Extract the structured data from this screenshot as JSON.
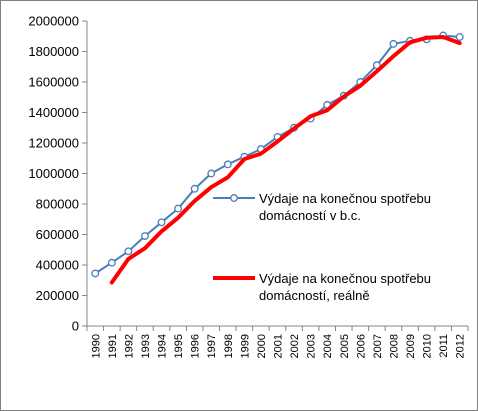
{
  "chart_data": {
    "type": "line",
    "title": "",
    "xlabel": "",
    "ylabel": "",
    "ylim": [
      0,
      2000000
    ],
    "yticks": [
      "0",
      "200000",
      "400000",
      "600000",
      "800000",
      "1000000",
      "1200000",
      "1400000",
      "1600000",
      "1800000",
      "2000000"
    ],
    "x": [
      "1990",
      "1991",
      "1992",
      "1993",
      "1994",
      "1995",
      "1996",
      "1997",
      "1998",
      "1999",
      "2000",
      "2001",
      "2002",
      "2003",
      "2004",
      "2005",
      "2006",
      "2007",
      "2008",
      "2009",
      "2010",
      "2011",
      "2012"
    ],
    "grid": false,
    "legend_position": "right",
    "series": [
      {
        "name": "Výdaje na konečnou spotřebu domácností v b.c.",
        "legend_lines": [
          "Výdaje na konečnou spotřebu",
          "domácností v b.c."
        ],
        "color": "#4a7ebb",
        "marker": "circle",
        "values": [
          345000,
          415000,
          490000,
          590000,
          680000,
          770000,
          900000,
          1000000,
          1060000,
          1110000,
          1160000,
          1240000,
          1300000,
          1360000,
          1450000,
          1510000,
          1600000,
          1710000,
          1850000,
          1870000,
          1880000,
          1905000,
          1895000
        ]
      },
      {
        "name": "Výdaje na konečnou spotřebu domácností, reálně",
        "legend_lines": [
          "Výdaje na konečnou spotřebu",
          "domácností, reálně"
        ],
        "color": "#ff0000",
        "marker": "none",
        "values": [
          null,
          285000,
          440000,
          510000,
          620000,
          710000,
          820000,
          910000,
          975000,
          1095000,
          1130000,
          1210000,
          1295000,
          1375000,
          1415000,
          1505000,
          1575000,
          1670000,
          1770000,
          1860000,
          1890000,
          1895000,
          1855000
        ]
      }
    ]
  }
}
